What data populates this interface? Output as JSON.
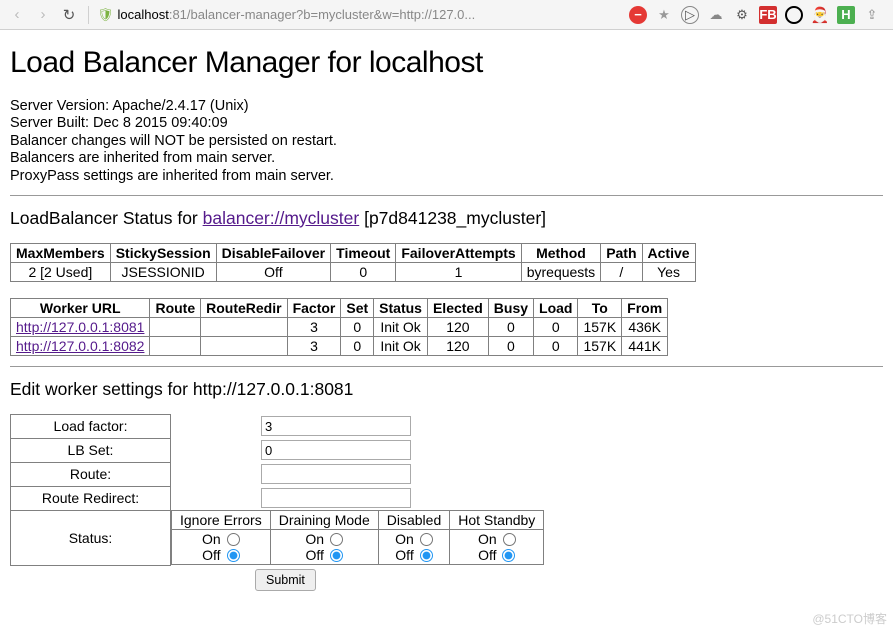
{
  "browser": {
    "url_host": "localhost",
    "url_path": ":81/balancer-manager?b=mycluster&w=http://127.0..."
  },
  "page": {
    "title": "Load Balancer Manager for localhost",
    "info": {
      "server_version": "Server Version: Apache/2.4.17 (Unix)",
      "server_built": "Server Built: Dec 8 2015 09:40:09",
      "persist": "Balancer changes will NOT be persisted on restart.",
      "inherit_balancers": "Balancers are inherited from main server.",
      "inherit_proxypass": "ProxyPass settings are inherited from main server."
    },
    "status_heading_prefix": "LoadBalancer Status for ",
    "status_link": "balancer://mycluster",
    "status_suffix": " [p7d841238_mycluster]"
  },
  "balancer_table": {
    "headers": [
      "MaxMembers",
      "StickySession",
      "DisableFailover",
      "Timeout",
      "FailoverAttempts",
      "Method",
      "Path",
      "Active"
    ],
    "row": [
      "2 [2 Used]",
      "JSESSIONID",
      "Off",
      "0",
      "1",
      "byrequests",
      "/",
      "Yes"
    ]
  },
  "worker_table": {
    "headers": [
      "Worker URL",
      "Route",
      "RouteRedir",
      "Factor",
      "Set",
      "Status",
      "Elected",
      "Busy",
      "Load",
      "To",
      "From"
    ],
    "rows": [
      {
        "url": "http://127.0.0.1:8081",
        "route": "",
        "redir": "",
        "factor": "3",
        "set": "0",
        "status": "Init Ok",
        "elected": "120",
        "busy": "0",
        "load": "0",
        "to": "157K",
        "from": "436K"
      },
      {
        "url": "http://127.0.0.1:8082",
        "route": "",
        "redir": "",
        "factor": "3",
        "set": "0",
        "status": "Init Ok",
        "elected": "120",
        "busy": "0",
        "load": "0",
        "to": "157K",
        "from": "441K"
      }
    ]
  },
  "edit": {
    "heading": "Edit worker settings for http://127.0.0.1:8081",
    "labels": {
      "load_factor": "Load factor:",
      "lb_set": "LB Set:",
      "route": "Route:",
      "route_redirect": "Route Redirect:",
      "status": "Status:"
    },
    "values": {
      "load_factor": "3",
      "lb_set": "0",
      "route": "",
      "route_redirect": ""
    },
    "status_cols": [
      "Ignore Errors",
      "Draining Mode",
      "Disabled",
      "Hot Standby"
    ],
    "on": "On",
    "off": "Off",
    "submit": "Submit"
  },
  "watermark": "@51CTO博客"
}
